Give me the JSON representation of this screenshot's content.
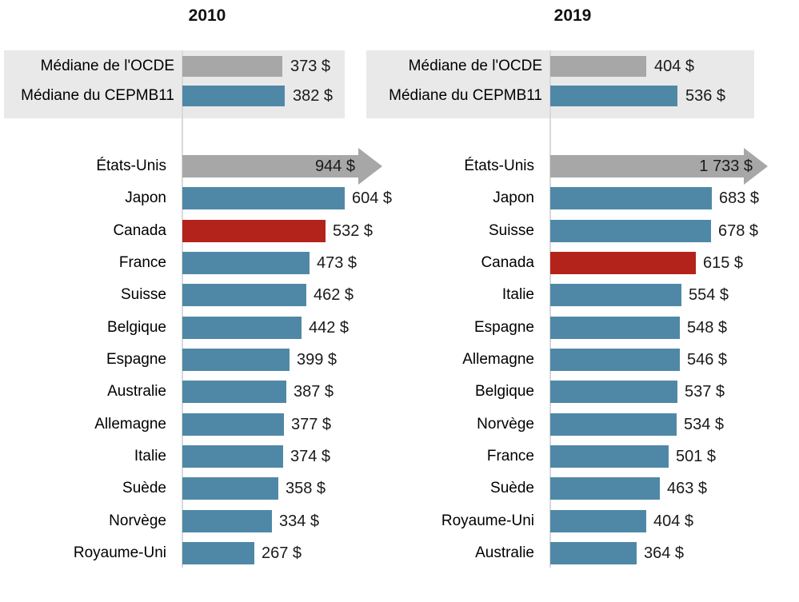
{
  "chart_data": {
    "type": "bar",
    "orientation": "horizontal",
    "unit": "$",
    "colors": {
      "blue": "#4f88a6",
      "red": "#b3231b",
      "gray": "#a7a7a7"
    },
    "panels": [
      {
        "title": "2010",
        "median_box": [
          {
            "label": "Médiane de l'OCDE",
            "value": 373,
            "display": "373 $",
            "color_key": "gray"
          },
          {
            "label": "Médiane du CEPMB11",
            "value": 382,
            "display": "382 $",
            "color_key": "blue"
          }
        ],
        "countries": [
          {
            "label": "États-Unis",
            "value": 944,
            "display": "944 $",
            "color_key": "gray",
            "arrow": true
          },
          {
            "label": "Japon",
            "value": 604,
            "display": "604 $",
            "color_key": "blue"
          },
          {
            "label": "Canada",
            "value": 532,
            "display": "532 $",
            "color_key": "red"
          },
          {
            "label": "France",
            "value": 473,
            "display": "473 $",
            "color_key": "blue"
          },
          {
            "label": "Suisse",
            "value": 462,
            "display": "462 $",
            "color_key": "blue"
          },
          {
            "label": "Belgique",
            "value": 442,
            "display": "442 $",
            "color_key": "blue"
          },
          {
            "label": "Espagne",
            "value": 399,
            "display": "399 $",
            "color_key": "blue"
          },
          {
            "label": "Australie",
            "value": 387,
            "display": "387 $",
            "color_key": "blue"
          },
          {
            "label": "Allemagne",
            "value": 377,
            "display": "377 $",
            "color_key": "blue"
          },
          {
            "label": "Italie",
            "value": 374,
            "display": "374 $",
            "color_key": "blue"
          },
          {
            "label": "Suède",
            "value": 358,
            "display": "358 $",
            "color_key": "blue"
          },
          {
            "label": "Norvège",
            "value": 334,
            "display": "334 $",
            "color_key": "blue"
          },
          {
            "label": "Royaume-Uni",
            "value": 267,
            "display": "267 $",
            "color_key": "blue"
          }
        ]
      },
      {
        "title": "2019",
        "median_box": [
          {
            "label": "Médiane de l'OCDE",
            "value": 404,
            "display": "404 $",
            "color_key": "gray"
          },
          {
            "label": "Médiane du CEPMB11",
            "value": 536,
            "display": "536 $",
            "color_key": "blue"
          }
        ],
        "countries": [
          {
            "label": "États-Unis",
            "value": 1733,
            "display": "1 733 $",
            "color_key": "gray",
            "arrow": true
          },
          {
            "label": "Japon",
            "value": 683,
            "display": "683 $",
            "color_key": "blue"
          },
          {
            "label": "Suisse",
            "value": 678,
            "display": "678 $",
            "color_key": "blue"
          },
          {
            "label": "Canada",
            "value": 615,
            "display": "615 $",
            "color_key": "red"
          },
          {
            "label": "Italie",
            "value": 554,
            "display": "554 $",
            "color_key": "blue"
          },
          {
            "label": "Espagne",
            "value": 548,
            "display": "548 $",
            "color_key": "blue"
          },
          {
            "label": "Allemagne",
            "value": 546,
            "display": "546 $",
            "color_key": "blue"
          },
          {
            "label": "Belgique",
            "value": 537,
            "display": "537 $",
            "color_key": "blue"
          },
          {
            "label": "Norvège",
            "value": 534,
            "display": "534 $",
            "color_key": "blue"
          },
          {
            "label": "France",
            "value": 501,
            "display": "501 $",
            "color_key": "blue"
          },
          {
            "label": "Suède",
            "value": 463,
            "display": "463 $",
            "color_key": "blue"
          },
          {
            "label": "Royaume-Uni",
            "value": 404,
            "display": "404 $",
            "color_key": "blue"
          },
          {
            "label": "Australie",
            "value": 364,
            "display": "364 $",
            "color_key": "blue"
          }
        ]
      }
    ]
  }
}
